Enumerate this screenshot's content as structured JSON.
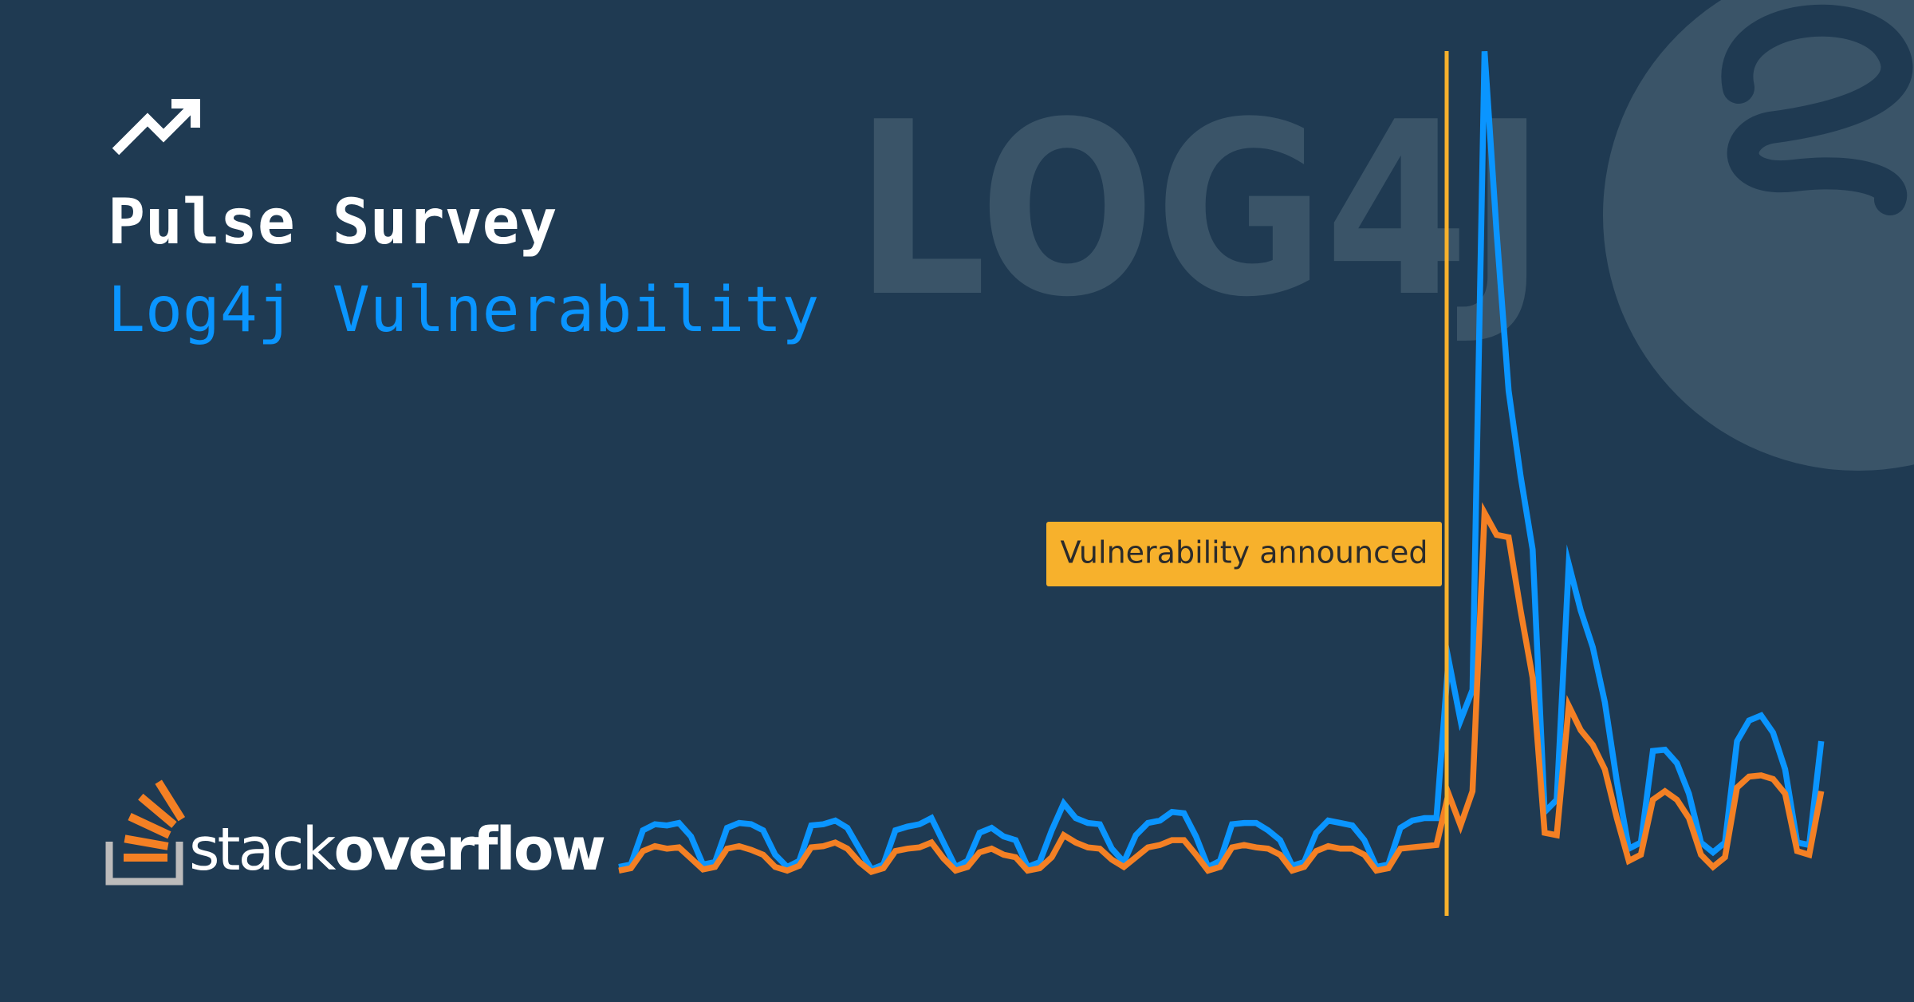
{
  "header": {
    "title": "Pulse Survey",
    "subtitle": "Log4j Vulnerability",
    "background_logo": "LOG4J"
  },
  "brand": {
    "light": "stack",
    "bold": "overflow"
  },
  "chart_data": {
    "type": "line",
    "annotation": "Vulnerability announced",
    "series": [
      {
        "color": "#0a95ff",
        "values": [
          40,
          42,
          70,
          75,
          74,
          76,
          65,
          42,
          44,
          72,
          76,
          75,
          70,
          50,
          40,
          45,
          74,
          75,
          78,
          72,
          55,
          38,
          42,
          70,
          73,
          75,
          80,
          60,
          40,
          45,
          68,
          72,
          65,
          62,
          40,
          44,
          70,
          92,
          80,
          76,
          75,
          55,
          44,
          66,
          76,
          78,
          85,
          84,
          65,
          40,
          45,
          75,
          76,
          76,
          70,
          62,
          41,
          44,
          68,
          78,
          76,
          74,
          62,
          40,
          42,
          72,
          78,
          80,
          80,
          210,
          160,
          185,
          708,
          560,
          430,
          360,
          300,
          85,
          95,
          288,
          250,
          220,
          175,
          110,
          55,
          60,
          135,
          136,
          125,
          100,
          60,
          52,
          60,
          143,
          160,
          164,
          150,
          120,
          60,
          58,
          143
        ]
      },
      {
        "color": "#f48024",
        "values": [
          37,
          39,
          53,
          57,
          55,
          56,
          47,
          38,
          40,
          55,
          57,
          54,
          50,
          40,
          37,
          41,
          56,
          57,
          60,
          55,
          44,
          36,
          39,
          53,
          55,
          56,
          60,
          47,
          37,
          40,
          52,
          55,
          50,
          48,
          37,
          39,
          48,
          66,
          60,
          56,
          55,
          46,
          40,
          48,
          56,
          58,
          62,
          62,
          50,
          37,
          40,
          56,
          58,
          56,
          55,
          50,
          37,
          40,
          53,
          57,
          55,
          55,
          50,
          37,
          39,
          55,
          56,
          57,
          58,
          100,
          74,
          102,
          330,
          312,
          310,
          250,
          195,
          68,
          66,
          172,
          152,
          140,
          120,
          80,
          45,
          50,
          95,
          102,
          95,
          80,
          50,
          40,
          48,
          105,
          114,
          115,
          112,
          100,
          53,
          50,
          102
        ]
      }
    ]
  }
}
